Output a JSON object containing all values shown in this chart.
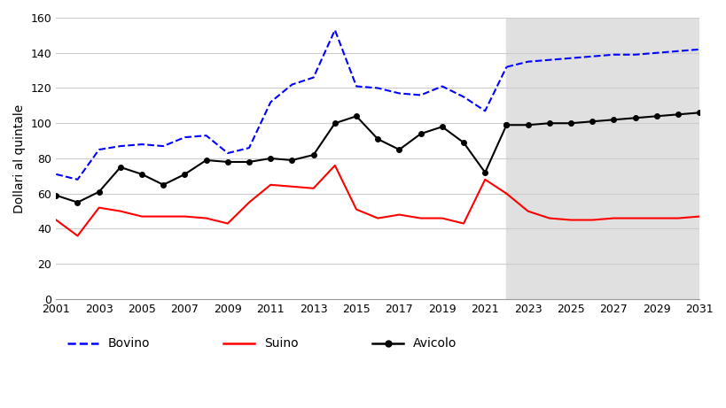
{
  "years_historical": [
    2001,
    2002,
    2003,
    2004,
    2005,
    2006,
    2007,
    2008,
    2009,
    2010,
    2011,
    2012,
    2013,
    2014,
    2015,
    2016,
    2017,
    2018,
    2019,
    2020,
    2021,
    2022
  ],
  "years_forecast": [
    2022,
    2023,
    2024,
    2025,
    2026,
    2027,
    2028,
    2029,
    2030,
    2031
  ],
  "bovino_hist": [
    71,
    68,
    85,
    87,
    88,
    87,
    92,
    93,
    83,
    86,
    112,
    122,
    126,
    153,
    121,
    120,
    117,
    116,
    121,
    115,
    107,
    132
  ],
  "bovino_fore": [
    132,
    135,
    136,
    137,
    138,
    139,
    139,
    140,
    141,
    142
  ],
  "suino_hist": [
    45,
    36,
    52,
    50,
    47,
    47,
    47,
    46,
    43,
    55,
    65,
    64,
    63,
    76,
    51,
    46,
    48,
    46,
    46,
    43,
    68,
    60
  ],
  "suino_fore": [
    60,
    50,
    46,
    45,
    45,
    46,
    46,
    46,
    46,
    47
  ],
  "avicolo_hist": [
    59,
    55,
    61,
    75,
    71,
    65,
    71,
    79,
    78,
    78,
    80,
    79,
    82,
    100,
    104,
    91,
    85,
    94,
    98,
    89,
    72,
    99
  ],
  "avicolo_fore": [
    99,
    99,
    100,
    100,
    101,
    102,
    103,
    104,
    105,
    106
  ],
  "forecast_start_year": 2022,
  "shade_color": "#e0e0e0",
  "bovino_color": "#0000ff",
  "suino_color": "#ff0000",
  "avicolo_color": "#000000",
  "ylabel": "Dollari al quintale",
  "ylim": [
    0,
    160
  ],
  "yticks": [
    0,
    20,
    40,
    60,
    80,
    100,
    120,
    140,
    160
  ],
  "xticks": [
    2001,
    2003,
    2005,
    2007,
    2009,
    2011,
    2013,
    2015,
    2017,
    2019,
    2021,
    2023,
    2025,
    2027,
    2029,
    2031
  ],
  "legend_bovino": "Bovino",
  "legend_suino": "Suino",
  "legend_avicolo": "Avicolo",
  "bg_color": "#ffffff",
  "grid_color": "#cccccc"
}
